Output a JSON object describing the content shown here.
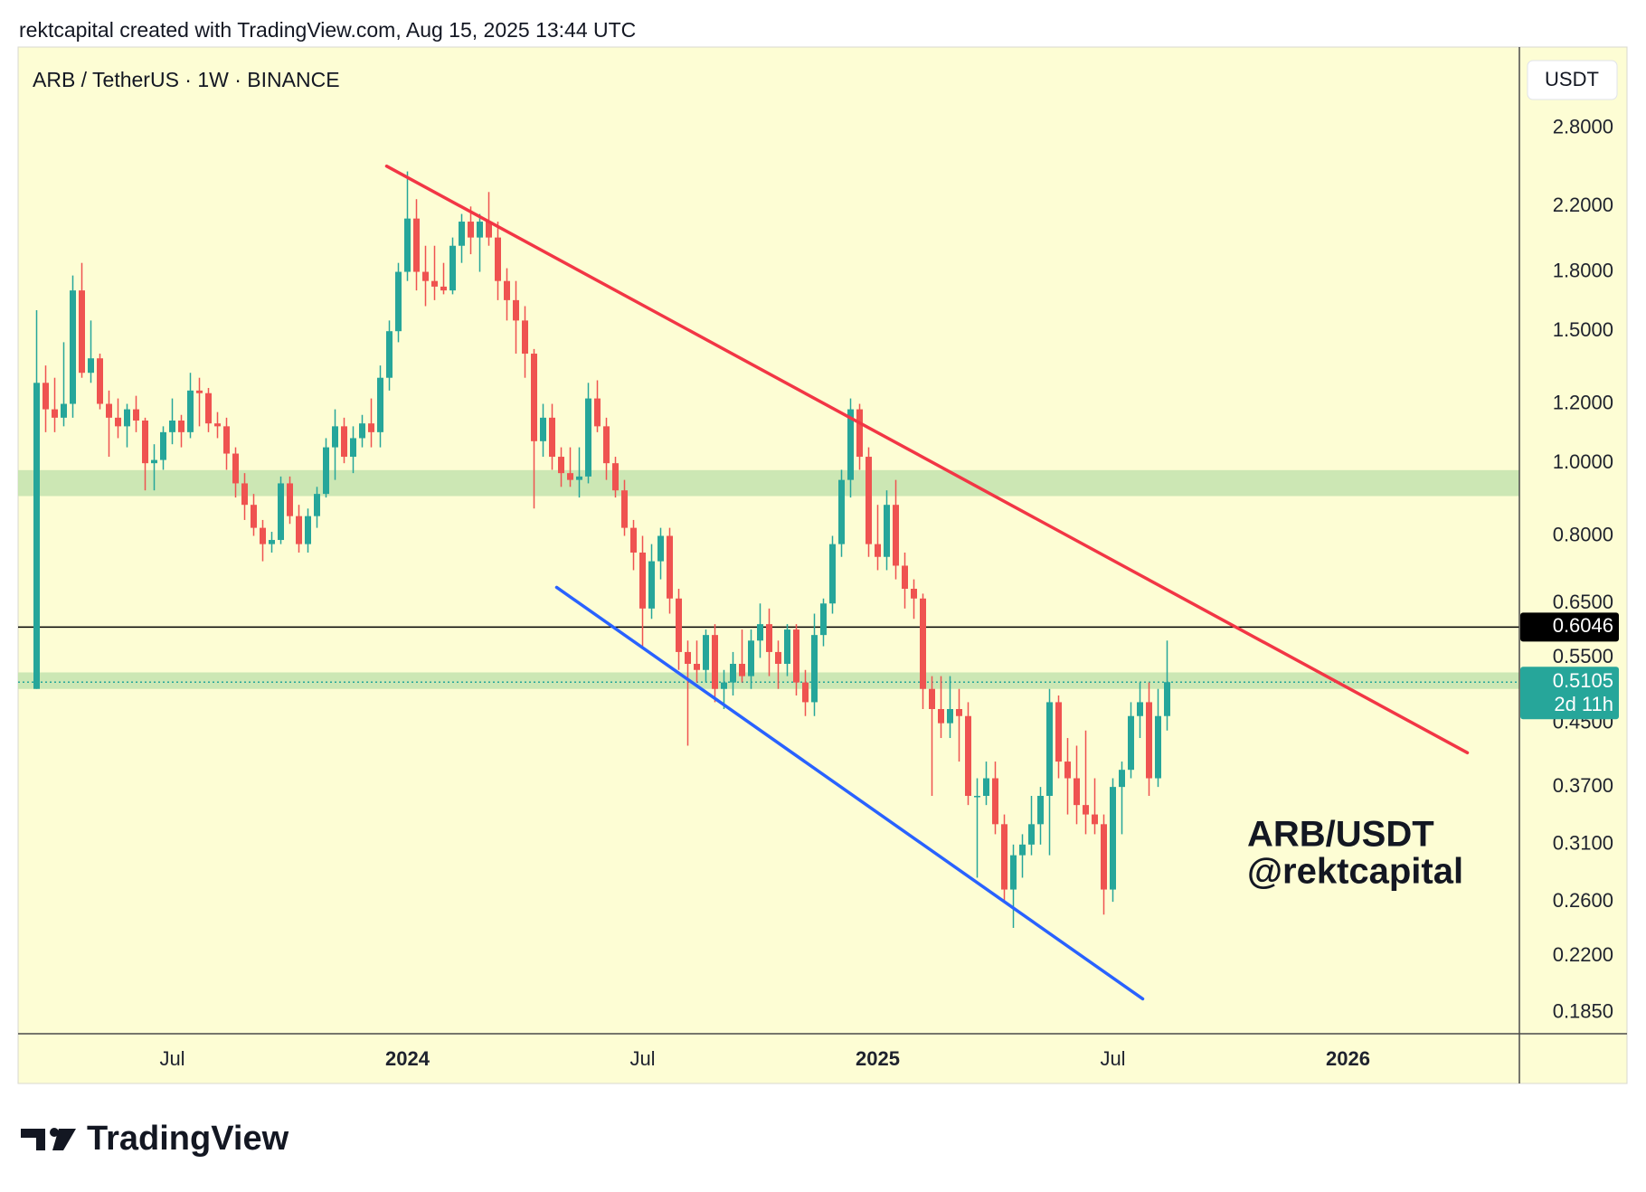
{
  "header": {
    "credit": "rektcapital created with TradingView.com, Aug 15, 2025 13:44 UTC"
  },
  "chart_data": {
    "type": "candlestick",
    "symbol": "ARB / TetherUS · 1W · BINANCE",
    "currency": "USDT",
    "log_scale": true,
    "grid": false,
    "up_color": "#26a69a",
    "down_color": "#ef5350",
    "ylim": [
      0.1734,
      3.59
    ],
    "yticks": [
      {
        "value": 2.8,
        "label": "2.8000"
      },
      {
        "value": 2.2,
        "label": "2.2000"
      },
      {
        "value": 1.8,
        "label": "1.8000"
      },
      {
        "value": 1.5,
        "label": "1.5000"
      },
      {
        "value": 1.2,
        "label": "1.2000"
      },
      {
        "value": 1.0,
        "label": "1.0000"
      },
      {
        "value": 0.8,
        "label": "0.8000"
      },
      {
        "value": 0.65,
        "label": "0.6500"
      },
      {
        "value": 0.55,
        "label": "0.5500"
      },
      {
        "value": 0.45,
        "label": "0.4500"
      },
      {
        "value": 0.37,
        "label": "0.3700"
      },
      {
        "value": 0.31,
        "label": "0.3100"
      },
      {
        "value": 0.26,
        "label": "0.2600"
      },
      {
        "value": 0.22,
        "label": "0.2200"
      },
      {
        "value": 0.185,
        "label": "0.1850"
      }
    ],
    "categories": [
      null,
      null,
      null,
      null,
      null,
      null,
      null,
      null,
      null,
      null,
      null,
      null,
      null,
      null,
      null,
      "Jul",
      null,
      null,
      null,
      null,
      null,
      null,
      null,
      null,
      null,
      null,
      null,
      null,
      null,
      null,
      null,
      null,
      null,
      null,
      null,
      null,
      null,
      null,
      null,
      null,
      null,
      "2024",
      null,
      null,
      null,
      null,
      null,
      null,
      null,
      null,
      null,
      null,
      null,
      null,
      null,
      null,
      null,
      null,
      null,
      null,
      null,
      null,
      null,
      null,
      null,
      null,
      null,
      "Jul",
      null,
      null,
      null,
      null,
      null,
      null,
      null,
      null,
      null,
      null,
      null,
      null,
      null,
      null,
      null,
      null,
      null,
      null,
      null,
      null,
      null,
      null,
      null,
      null,
      null,
      "2025",
      null,
      null,
      null,
      null,
      null,
      null,
      null,
      null,
      null,
      null,
      null,
      null,
      null,
      null,
      null,
      null,
      null,
      null,
      null,
      null,
      null,
      null,
      null,
      null,
      null,
      "Jul",
      null,
      null,
      null,
      null,
      null,
      null,
      null,
      null,
      null,
      null,
      null,
      null,
      null,
      null,
      null,
      null,
      null,
      null,
      null,
      null,
      null,
      null,
      null,
      null,
      null,
      "2026",
      null,
      null,
      null,
      null,
      null,
      null,
      null,
      null,
      null,
      null,
      null,
      null,
      null,
      null,
      null,
      null,
      null,
      null
    ],
    "open": [
      0.5,
      1.28,
      1.18,
      1.15,
      1.2,
      1.7,
      1.32,
      1.38,
      1.2,
      1.15,
      1.12,
      1.18,
      1.14,
      1.0,
      1.01,
      1.1,
      1.14,
      1.1,
      1.25,
      1.24,
      1.13,
      1.12,
      1.03,
      0.94,
      0.88,
      0.82,
      0.78,
      0.79,
      0.94,
      0.85,
      0.78,
      0.85,
      0.91,
      1.05,
      1.12,
      1.02,
      1.08,
      1.13,
      1.1,
      1.3,
      1.5,
      1.8,
      2.12,
      1.8,
      1.75,
      1.72,
      1.7,
      1.95,
      2.1,
      2.0,
      2.1,
      2.0,
      1.75,
      1.65,
      1.55,
      1.4,
      1.07,
      1.15,
      1.02,
      0.97,
      0.95,
      0.96,
      1.22,
      1.12,
      1.0,
      0.92,
      0.82,
      0.76,
      0.64,
      0.74,
      0.8,
      0.66,
      0.56,
      0.54,
      0.53,
      0.59,
      0.5,
      0.51,
      0.54,
      0.52,
      0.58,
      0.61,
      0.56,
      0.54,
      0.6,
      0.51,
      0.48,
      0.59,
      0.65,
      0.78,
      0.95,
      1.18,
      1.02,
      0.78,
      0.75,
      0.88,
      0.73,
      0.68,
      0.66,
      0.5,
      0.47,
      0.45,
      0.47,
      0.46,
      0.36,
      0.36,
      0.38,
      0.33,
      0.27,
      0.3,
      0.31,
      0.33,
      0.36,
      0.48,
      0.4,
      0.38,
      0.35,
      0.34,
      0.33,
      0.27,
      0.37,
      0.39,
      0.46,
      0.48,
      0.38,
      0.46,
      null,
      null,
      null,
      null,
      null,
      null,
      null,
      null,
      null,
      null,
      null,
      null,
      null,
      null,
      null,
      null,
      null,
      null,
      null,
      null,
      null,
      null,
      null,
      null,
      null,
      null,
      null,
      null,
      null,
      null,
      null,
      null,
      null,
      null,
      null,
      null,
      null,
      null
    ],
    "high": [
      1.6,
      1.35,
      1.3,
      1.45,
      1.78,
      1.85,
      1.55,
      1.4,
      1.25,
      1.22,
      1.2,
      1.23,
      1.15,
      1.06,
      1.12,
      1.22,
      1.16,
      1.32,
      1.3,
      1.26,
      1.17,
      1.15,
      1.05,
      0.97,
      0.91,
      0.84,
      0.81,
      0.96,
      0.96,
      0.88,
      0.87,
      0.93,
      1.08,
      1.18,
      1.15,
      1.12,
      1.16,
      1.22,
      1.35,
      1.55,
      1.85,
      2.45,
      2.25,
      1.95,
      1.95,
      1.85,
      2.0,
      2.15,
      2.2,
      2.15,
      2.3,
      2.1,
      1.82,
      1.75,
      1.62,
      1.42,
      1.2,
      1.2,
      1.05,
      1.05,
      1.05,
      1.28,
      1.29,
      1.15,
      1.02,
      0.95,
      0.84,
      0.8,
      0.78,
      0.82,
      0.82,
      0.68,
      0.58,
      0.58,
      0.6,
      0.61,
      0.53,
      0.56,
      0.6,
      0.6,
      0.65,
      0.64,
      0.58,
      0.61,
      0.61,
      0.53,
      0.63,
      0.66,
      0.8,
      0.98,
      1.22,
      1.2,
      1.05,
      0.88,
      0.92,
      0.95,
      0.76,
      0.7,
      0.67,
      0.52,
      0.52,
      0.52,
      0.5,
      0.48,
      0.38,
      0.4,
      0.4,
      0.34,
      0.31,
      0.32,
      0.36,
      0.37,
      0.5,
      0.49,
      0.43,
      0.42,
      0.44,
      0.38,
      0.34,
      0.38,
      0.4,
      0.48,
      0.51,
      0.51,
      0.5,
      0.58,
      null,
      null,
      null,
      null,
      null,
      null,
      null,
      null,
      null,
      null,
      null,
      null,
      null,
      null,
      null,
      null,
      null,
      null,
      null,
      null,
      null,
      null,
      null,
      null,
      null,
      null,
      null,
      null,
      null,
      null,
      null,
      null,
      null,
      null,
      null,
      null,
      null,
      null
    ],
    "low": [
      0.5,
      1.1,
      1.1,
      1.12,
      1.15,
      1.3,
      1.28,
      1.18,
      1.02,
      1.08,
      1.05,
      1.1,
      0.92,
      0.92,
      0.98,
      1.06,
      1.05,
      1.08,
      1.12,
      1.1,
      1.08,
      0.98,
      0.9,
      0.84,
      0.8,
      0.74,
      0.76,
      0.78,
      0.83,
      0.76,
      0.76,
      0.82,
      0.9,
      0.95,
      1.0,
      0.97,
      1.05,
      1.05,
      1.05,
      1.25,
      1.45,
      1.75,
      1.7,
      1.62,
      1.65,
      1.68,
      1.68,
      1.85,
      1.9,
      1.8,
      1.95,
      1.65,
      1.55,
      1.4,
      1.3,
      0.87,
      1.02,
      0.98,
      0.93,
      0.93,
      0.9,
      0.94,
      1.1,
      0.95,
      0.9,
      0.8,
      0.72,
      0.57,
      0.62,
      0.7,
      0.63,
      0.53,
      0.42,
      0.51,
      0.51,
      0.48,
      0.47,
      0.49,
      0.51,
      0.5,
      0.55,
      0.52,
      0.5,
      0.52,
      0.49,
      0.46,
      0.46,
      0.57,
      0.63,
      0.75,
      0.9,
      0.98,
      0.75,
      0.72,
      0.72,
      0.7,
      0.64,
      0.62,
      0.47,
      0.36,
      0.43,
      0.43,
      0.4,
      0.35,
      0.28,
      0.35,
      0.32,
      0.26,
      0.24,
      0.28,
      0.3,
      0.31,
      0.3,
      0.38,
      0.34,
      0.33,
      0.32,
      0.32,
      0.25,
      0.26,
      0.32,
      0.38,
      0.43,
      0.36,
      0.37,
      0.44,
      null,
      null,
      null,
      null,
      null,
      null,
      null,
      null,
      null,
      null,
      null,
      null,
      null,
      null,
      null,
      null,
      null,
      null,
      null,
      null,
      null,
      null,
      null,
      null,
      null,
      null,
      null,
      null,
      null,
      null,
      null,
      null,
      null,
      null,
      null,
      null,
      null,
      null
    ],
    "close": [
      1.28,
      1.18,
      1.15,
      1.2,
      1.7,
      1.32,
      1.38,
      1.2,
      1.15,
      1.12,
      1.18,
      1.14,
      1.0,
      1.01,
      1.1,
      1.14,
      1.1,
      1.25,
      1.24,
      1.13,
      1.12,
      1.03,
      0.94,
      0.88,
      0.82,
      0.78,
      0.79,
      0.94,
      0.85,
      0.78,
      0.85,
      0.91,
      1.05,
      1.12,
      1.02,
      1.08,
      1.13,
      1.1,
      1.3,
      1.5,
      1.8,
      2.12,
      1.8,
      1.75,
      1.72,
      1.7,
      1.95,
      2.1,
      2.0,
      2.1,
      2.0,
      1.75,
      1.65,
      1.55,
      1.4,
      1.07,
      1.15,
      1.02,
      0.97,
      0.95,
      0.96,
      1.22,
      1.12,
      1.0,
      0.92,
      0.82,
      0.76,
      0.64,
      0.74,
      0.8,
      0.66,
      0.56,
      0.54,
      0.53,
      0.59,
      0.5,
      0.51,
      0.54,
      0.52,
      0.58,
      0.61,
      0.56,
      0.54,
      0.6,
      0.51,
      0.48,
      0.59,
      0.65,
      0.78,
      0.95,
      1.18,
      1.02,
      0.78,
      0.75,
      0.88,
      0.73,
      0.68,
      0.66,
      0.5,
      0.47,
      0.45,
      0.47,
      0.46,
      0.36,
      0.36,
      0.38,
      0.33,
      0.27,
      0.3,
      0.31,
      0.33,
      0.36,
      0.48,
      0.4,
      0.38,
      0.35,
      0.34,
      0.33,
      0.27,
      0.37,
      0.39,
      0.46,
      0.48,
      0.38,
      0.46,
      0.5105,
      null,
      null,
      null,
      null,
      null,
      null,
      null,
      null,
      null,
      null,
      null,
      null,
      null,
      null,
      null,
      null,
      null,
      null,
      null,
      null,
      null,
      null,
      null,
      null,
      null,
      null,
      null,
      null,
      null,
      null,
      null,
      null,
      null,
      null,
      null,
      null,
      null,
      null
    ],
    "countdown": "2d 11h",
    "hlines": [
      {
        "value": 0.6046,
        "color": "#000000"
      }
    ],
    "zones": [
      {
        "from": 0.904,
        "to": 0.979,
        "color": "#c6e4b0"
      },
      {
        "from": 0.5,
        "to": 0.526,
        "color": "#c6e4b0"
      }
    ],
    "trendlines": [
      {
        "color": "#f23645",
        "from": [
          38.7,
          2.49
        ],
        "to": [
          158.2,
          0.411
        ]
      },
      {
        "color": "#2962ff",
        "from": [
          57.5,
          0.683
        ],
        "to": [
          122.3,
          0.193
        ]
      }
    ],
    "annotation": [
      "ARB/USDT",
      "@rektcapital"
    ]
  },
  "footer": {
    "brand": "TradingView"
  }
}
